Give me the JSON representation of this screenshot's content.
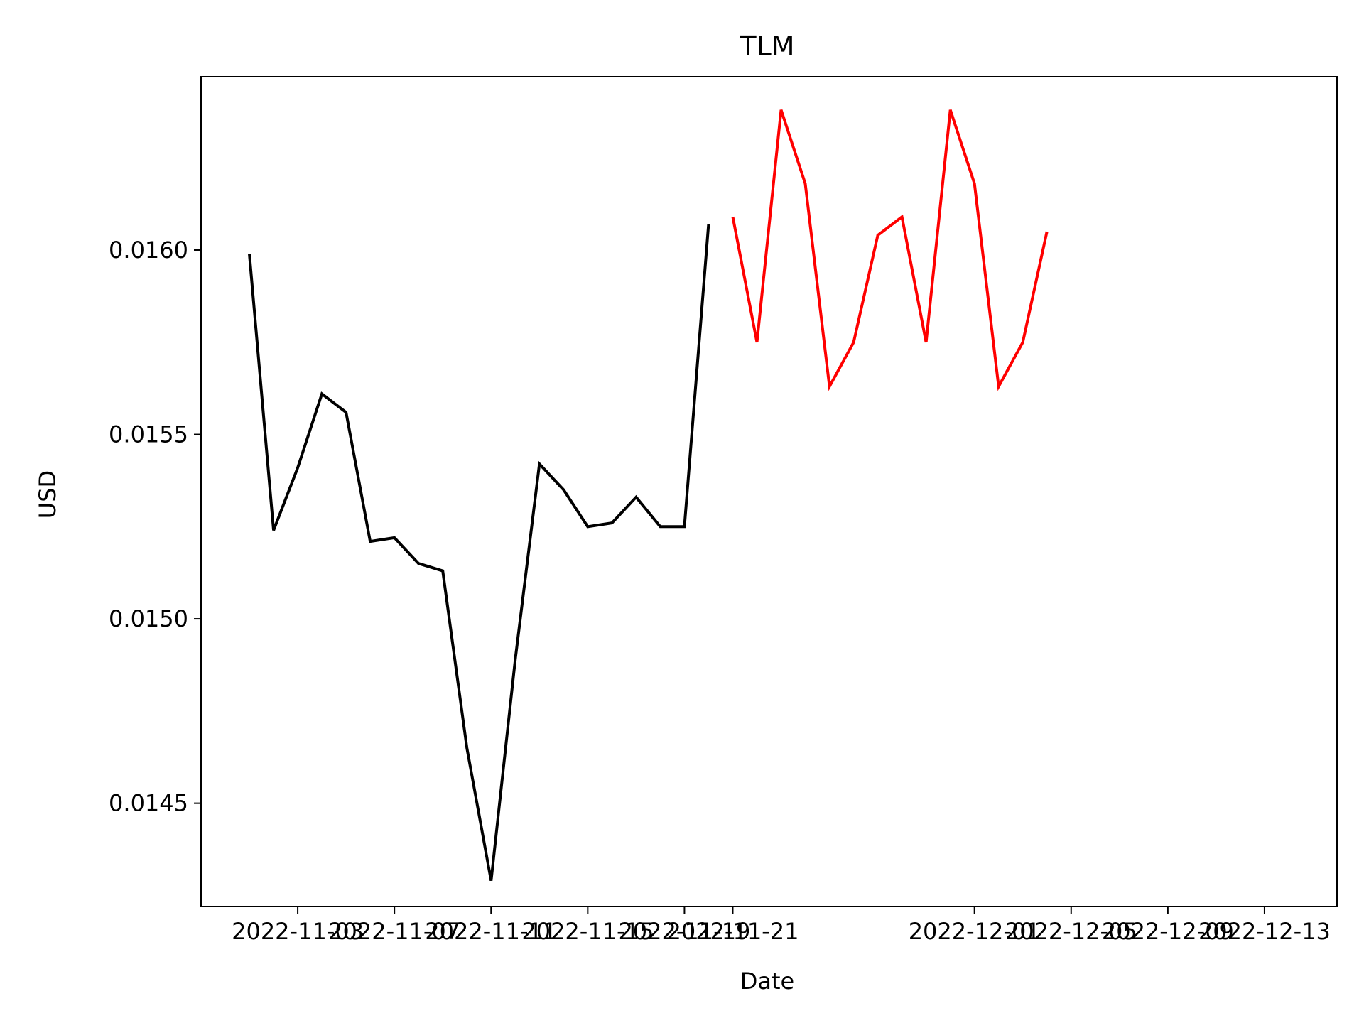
{
  "chart_data": {
    "type": "line",
    "title": "TLM",
    "xlabel": "Date",
    "ylabel": "USD",
    "xlim": [
      "2022-10-30",
      "2022-12-16"
    ],
    "ylim": [
      0.01422,
      0.01647
    ],
    "grid": false,
    "x_ticks": [
      "2022-11-03",
      "2022-11-07",
      "2022-11-11",
      "2022-11-15",
      "2022-11-19",
      "2022-11-21",
      "2022-12-01",
      "2022-12-05",
      "2022-12-09",
      "2022-12-13"
    ],
    "y_ticks": [
      "0.0145",
      "0.0150",
      "0.0155",
      "0.0160"
    ],
    "series": [
      {
        "color": "#000000",
        "x": [
          "2022-11-01",
          "2022-11-02",
          "2022-11-03",
          "2022-11-04",
          "2022-11-05",
          "2022-11-06",
          "2022-11-07",
          "2022-11-08",
          "2022-11-09",
          "2022-11-10",
          "2022-11-11",
          "2022-11-12",
          "2022-11-13",
          "2022-11-14",
          "2022-11-15",
          "2022-11-16",
          "2022-11-17",
          "2022-11-18",
          "2022-11-19",
          "2022-11-20"
        ],
        "values": [
          0.01599,
          0.01524,
          0.01541,
          0.01561,
          0.01556,
          0.01521,
          0.01522,
          0.01515,
          0.01513,
          0.01465,
          0.01429,
          0.01489,
          0.01542,
          0.01535,
          0.01525,
          0.01526,
          0.01533,
          0.01525,
          0.01525,
          0.01607
        ]
      },
      {
        "color": "#ff0000",
        "x": [
          "2022-11-21",
          "2022-11-22",
          "2022-11-23",
          "2022-11-24",
          "2022-11-25",
          "2022-11-26",
          "2022-11-27",
          "2022-11-28",
          "2022-11-29",
          "2022-11-30",
          "2022-12-01",
          "2022-12-02",
          "2022-12-03",
          "2022-12-04"
        ],
        "values": [
          0.01609,
          0.01575,
          0.01638,
          0.01618,
          0.01563,
          0.01575,
          0.01604,
          0.01609,
          0.01575,
          0.01638,
          0.01618,
          0.01563,
          0.01575,
          0.01605
        ]
      }
    ]
  }
}
